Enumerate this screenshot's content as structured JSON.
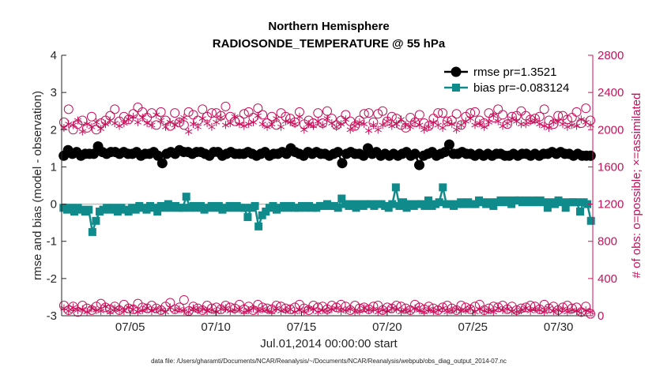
{
  "chart_data": {
    "type": "line",
    "title": "Northern Hemisphere",
    "subtitle": "RADIOSONDE_TEMPERATURE @ 55 hPa",
    "xlabel": "Jul.01,2014 00:00:00 start",
    "ylabel": "rmse and bias (model - observation)",
    "y2label": "# of obs: o=possible; ×=assimilated",
    "footnote": "data file: /Users/gharamti/Documents/NCAR/Reanalysis/~/Documents/NCAR/Reanalysis/webpub/obs_diag_output_2014-07.nc",
    "xlim": [
      1,
      32
    ],
    "ylim": [
      -3,
      4
    ],
    "y2lim": [
      0,
      2800
    ],
    "x_ticks": [
      5,
      10,
      15,
      20,
      25,
      30
    ],
    "x_tick_labels": [
      "07/05",
      "07/10",
      "07/15",
      "07/20",
      "07/25",
      "07/30"
    ],
    "y_ticks": [
      -3,
      -2,
      -1,
      0,
      1,
      2,
      3,
      4
    ],
    "y_tick_labels": [
      "-3",
      "-2",
      "-1",
      "0",
      "1",
      "2",
      "3",
      "4"
    ],
    "y2_ticks": [
      0,
      400,
      800,
      1200,
      1600,
      2000,
      2400,
      2800
    ],
    "y2_tick_labels": [
      "0",
      "400",
      "800",
      "1200",
      "1600",
      "2000",
      "2400",
      "2800"
    ],
    "legend_location": "top-right",
    "colors": {
      "rmse": "#000000",
      "bias": "#108b8b",
      "obs": "#c8105a",
      "zero_line": "#bfbfbf",
      "axis": "#262626"
    },
    "series": [
      {
        "name": "rmse pr=1.3521",
        "axis": "left",
        "marker": "circle",
        "values": [
          1.3,
          1.45,
          1.35,
          1.4,
          1.3,
          1.35,
          1.35,
          1.35,
          1.55,
          1.4,
          1.35,
          1.4,
          1.4,
          1.35,
          1.4,
          1.35,
          1.35,
          1.4,
          1.3,
          1.35,
          1.35,
          1.4,
          1.3,
          1.1,
          1.35,
          1.4,
          1.35,
          1.45,
          1.4,
          1.4,
          1.35,
          1.4,
          1.4,
          1.35,
          1.3,
          1.4,
          1.4,
          1.3,
          1.35,
          1.4,
          1.35,
          1.35,
          1.35,
          1.4,
          1.35,
          1.3,
          1.35,
          1.4,
          1.3,
          1.35,
          1.35,
          1.4,
          1.35,
          1.5,
          1.4,
          1.35,
          1.3,
          1.4,
          1.35,
          1.4,
          1.35,
          1.35,
          1.3,
          1.35,
          1.4,
          1.1,
          1.35,
          1.4,
          1.35,
          1.35,
          1.3,
          1.5,
          1.35,
          1.4,
          1.3,
          1.35,
          1.3,
          1.35,
          1.3,
          1.35,
          1.4,
          1.3,
          1.35,
          1.05,
          1.3,
          1.35,
          1.4,
          1.3,
          1.35,
          1.4,
          1.6,
          1.35,
          1.35,
          1.4,
          1.35,
          1.35,
          1.3,
          1.35,
          1.3,
          1.35,
          1.3,
          1.35,
          1.35,
          1.3,
          1.3,
          1.35,
          1.3,
          1.35,
          1.35,
          1.3,
          1.35,
          1.3,
          1.35,
          1.35,
          1.4,
          1.35,
          1.4,
          1.35,
          1.35,
          1.3,
          1.35,
          1.3,
          1.3,
          1.3
        ]
      },
      {
        "name": "bias pr=-0.083124",
        "axis": "left",
        "marker": "square",
        "values": [
          -0.1,
          -0.15,
          -0.1,
          -0.2,
          -0.1,
          -0.15,
          -0.2,
          -0.15,
          -0.75,
          -0.45,
          -0.2,
          -0.15,
          -0.1,
          -0.15,
          -0.1,
          -0.2,
          -0.1,
          -0.15,
          -0.2,
          -0.1,
          -0.15,
          -0.05,
          -0.1,
          -0.15,
          -0.05,
          -0.1,
          -0.2,
          -0.05,
          -0.1,
          0.0,
          -0.1,
          -0.05,
          -0.1,
          -0.1,
          0.2,
          -0.1,
          -0.05,
          -0.1,
          -0.05,
          -0.15,
          -0.1,
          -0.05,
          -0.1,
          -0.05,
          -0.15,
          -0.1,
          -0.05,
          -0.1,
          -0.05,
          -0.1,
          -0.1,
          -0.35,
          -0.1,
          -0.05,
          -0.6,
          -0.3,
          -0.2,
          -0.1,
          -0.05,
          -0.15,
          -0.1,
          -0.05,
          -0.1,
          -0.05,
          -0.1,
          -0.1,
          -0.05,
          -0.1,
          -0.05,
          -0.1,
          -0.1,
          -0.05,
          -0.05,
          0.0,
          -0.05,
          -0.05,
          -0.1,
          0.15,
          0.0,
          -0.05,
          0.0,
          -0.1,
          0.0,
          -0.05,
          0.0,
          0.0,
          -0.05,
          0.0,
          0.0,
          -0.05,
          -0.1,
          0.0,
          0.45,
          -0.05,
          0.05,
          -0.1,
          0.0,
          -0.05,
          0.0,
          0.0,
          -0.05,
          0.1,
          -0.05,
          0.0,
          0.05,
          0.45,
          0.0,
          0.0,
          -0.05,
          0.0,
          0.05,
          0.0,
          0.05,
          0.0,
          0.0,
          0.1,
          0.05,
          0.0,
          0.05,
          -0.05,
          0.05,
          0.1,
          0.05,
          0.1,
          0.0,
          0.1,
          0.1,
          0.05,
          0.1,
          0.05,
          0.1,
          0.05,
          0.1,
          0.05,
          -0.1,
          0.05,
          0.0,
          0.1,
          0.05,
          -0.1,
          0.05,
          0.05,
          0.05,
          -0.2,
          0.05,
          0.0,
          -0.45
        ]
      },
      {
        "name": "possible",
        "axis": "right",
        "marker": "open-circle",
        "values": [
          2080,
          2220,
          2000,
          2060,
          2100,
          2020,
          2140,
          2000,
          2070,
          2100,
          2150,
          2220,
          2090,
          2140,
          2110,
          2170,
          2240,
          2190,
          2130,
          2180,
          2050,
          2190,
          2100,
          2040,
          2180,
          2080,
          2050,
          2190,
          2160,
          2100,
          2220,
          2140,
          2180,
          2180,
          2150,
          2250,
          2140,
          2090,
          2100,
          2170,
          2190,
          2130,
          2230,
          2160,
          2070,
          2140,
          2050,
          2180,
          2140,
          2120,
          2080,
          2190,
          2060,
          2100,
          2070,
          2180,
          2070,
          2200,
          2120,
          2050,
          2100,
          2160,
          2090,
          2040,
          2100,
          2170,
          2180,
          2080,
          2170,
          2200,
          2090,
          2140,
          2120,
          2050,
          2020,
          2130,
          2080,
          2160,
          2070,
          2040,
          2120,
          2180,
          2180,
          2090,
          2100,
          2170,
          2050,
          2140,
          2180,
          2190,
          2100,
          2070,
          2180,
          2130,
          2220,
          2160,
          2060,
          2140,
          2150,
          2200,
          2150,
          2110,
          2120,
          2140,
          2220,
          2100,
          2060,
          2150,
          2150,
          2110,
          2130,
          2190,
          2070,
          2230,
          2100
        ]
      },
      {
        "name": "assimilated",
        "axis": "right",
        "marker": "asterisk",
        "values": [
          2020,
          2060,
          2050,
          2100,
          1980,
          2060,
          2030,
          2080,
          2010,
          2060,
          2100,
          2070,
          2040,
          2070,
          2110,
          2140,
          2080,
          2130,
          2070,
          2050,
          2160,
          2100,
          2030,
          2080,
          2050,
          2090,
          2130,
          1980,
          2060,
          2030,
          2120,
          2070,
          2030,
          2080,
          2130,
          2050,
          2070,
          2140,
          2060,
          2040,
          2060,
          2080,
          2150,
          2060,
          2030,
          2060,
          2120,
          2030,
          2090,
          2080,
          2060,
          2140,
          2000,
          2060,
          2040,
          2090,
          2050,
          2120,
          2070,
          2030,
          2060,
          2110,
          2000,
          2040,
          2080,
          2060,
          1990,
          2050,
          2000,
          2050,
          2090,
          2040,
          2060,
          2110,
          2050,
          2030,
          2080,
          2050,
          2000,
          2030,
          2080,
          2050,
          2020,
          2080,
          2060,
          2000,
          2050,
          2090,
          2120,
          2050,
          2070,
          2030,
          2080,
          2150,
          2090,
          2040,
          2070,
          2120,
          2090,
          2060,
          2060,
          2090,
          2100,
          2060,
          2040,
          2020,
          2080,
          2090,
          2060,
          2030,
          2050,
          2040,
          2110,
          2080,
          2050
        ]
      },
      {
        "name": "possible-low",
        "axis": "right",
        "marker": "open-circle",
        "values": [
          110,
          60,
          100,
          40,
          110,
          80,
          60,
          100,
          130,
          90,
          70,
          100,
          60,
          120,
          80,
          70,
          130,
          90,
          80,
          110,
          80,
          60,
          100,
          140,
          70,
          90,
          170,
          50,
          100,
          80,
          60,
          110,
          80,
          90,
          70,
          110,
          90,
          80,
          120,
          70,
          100,
          60,
          120,
          90,
          80,
          70,
          110,
          100,
          80,
          70,
          90,
          120,
          80,
          60,
          110,
          90,
          100,
          70,
          110,
          90,
          120,
          100,
          60,
          110,
          80,
          90,
          70,
          100,
          110,
          60,
          90,
          80,
          110,
          100,
          80,
          60,
          120,
          90,
          70,
          100,
          80,
          60,
          90,
          110,
          80,
          60,
          110,
          90,
          70,
          100,
          120,
          60,
          80,
          100,
          90,
          110,
          70,
          100,
          60,
          80,
          90,
          110,
          100,
          70,
          120,
          80,
          100,
          60,
          90,
          110,
          80,
          90,
          40,
          100,
          20
        ]
      },
      {
        "name": "assimilated-low",
        "axis": "right",
        "marker": "asterisk",
        "values": [
          80,
          50,
          90,
          60,
          70,
          40,
          80,
          60,
          50,
          100,
          40,
          80,
          60,
          50,
          90,
          70,
          40,
          60,
          80,
          50,
          70,
          60,
          40,
          90,
          60,
          70,
          50,
          40,
          80,
          60,
          70,
          50,
          60,
          40,
          70,
          80,
          50,
          60,
          70,
          40,
          60,
          80,
          50,
          70,
          60,
          40,
          80,
          50,
          60,
          70,
          40,
          60,
          50,
          80,
          70,
          40,
          60,
          50,
          70,
          80,
          50,
          60,
          70,
          40,
          50,
          80,
          60,
          70,
          40,
          60,
          50,
          80,
          70,
          40,
          60,
          50,
          80,
          60,
          40,
          70,
          50,
          60,
          80,
          40,
          60,
          70,
          50,
          60,
          80,
          40,
          70,
          50,
          60,
          40,
          80,
          60,
          70,
          50,
          40,
          60,
          80,
          50,
          70,
          60,
          40,
          80,
          50,
          60,
          70,
          40,
          60,
          50,
          30,
          60,
          40
        ]
      }
    ],
    "legend": [
      "rmse pr=1.3521",
      "bias pr=-0.083124"
    ]
  }
}
